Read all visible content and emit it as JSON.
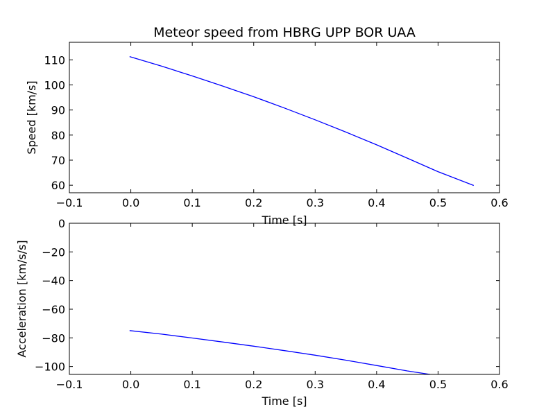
{
  "chart_data": [
    {
      "type": "line",
      "title": "Meteor speed from  HBRG UPP BOR UAA",
      "xlabel": "Time [s]",
      "ylabel": "Speed [km/s]",
      "xlim": [
        -0.1,
        0.6
      ],
      "ylim": [
        57,
        117
      ],
      "xticks": [
        -0.1,
        0.0,
        0.1,
        0.2,
        0.3,
        0.4,
        0.5,
        0.6
      ],
      "xtick_labels": [
        "−0.1",
        "0.0",
        "0.1",
        "0.2",
        "0.3",
        "0.4",
        "0.5",
        "0.6"
      ],
      "yticks": [
        60,
        70,
        80,
        90,
        100,
        110
      ],
      "ytick_labels": [
        "60",
        "70",
        "80",
        "90",
        "100",
        "110"
      ],
      "grid": false,
      "series": [
        {
          "color": "#0000ff",
          "x": [
            -0.002,
            0.05,
            0.1,
            0.15,
            0.2,
            0.25,
            0.3,
            0.35,
            0.4,
            0.45,
            0.5,
            0.558
          ],
          "y": [
            111.3,
            107.5,
            103.6,
            99.5,
            95.3,
            90.8,
            86.1,
            81.2,
            76.1,
            70.8,
            65.4,
            59.9
          ]
        }
      ]
    },
    {
      "type": "line",
      "title": "",
      "xlabel": "Time [s]",
      "ylabel": "Acceleration [km/s/s]",
      "xlim": [
        -0.1,
        0.6
      ],
      "ylim": [
        -105.5,
        0
      ],
      "xticks": [
        -0.1,
        0.0,
        0.1,
        0.2,
        0.3,
        0.4,
        0.5,
        0.6
      ],
      "xtick_labels": [
        "−0.1",
        "0.0",
        "0.1",
        "0.2",
        "0.3",
        "0.4",
        "0.5",
        "0.6"
      ],
      "yticks": [
        0,
        -20,
        -40,
        -60,
        -80,
        -100
      ],
      "ytick_labels": [
        "0",
        "−20",
        "−40",
        "−60",
        "−80",
        "−100"
      ],
      "grid": false,
      "series": [
        {
          "color": "#0000ff",
          "x": [
            -0.002,
            0.05,
            0.1,
            0.15,
            0.2,
            0.25,
            0.3,
            0.35,
            0.4,
            0.45,
            0.487
          ],
          "y": [
            -74.9,
            -77.4,
            -80.1,
            -82.9,
            -85.8,
            -88.9,
            -92.1,
            -95.6,
            -99.3,
            -103.1,
            -105.5
          ]
        }
      ]
    }
  ]
}
